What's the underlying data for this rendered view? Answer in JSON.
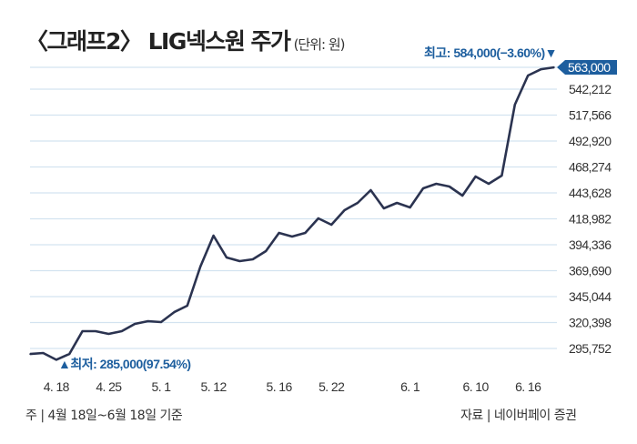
{
  "title": "〈그래프2〉 LIG넥스원 주가",
  "unit": "(단위: 원)",
  "footnote_left": "주 | 4월 18일~6월 18일 기준",
  "footnote_right": "자료 | 네이버페이 증권",
  "colors": {
    "line": "#2b3350",
    "grid": "#d3e3f0",
    "accent": "#1d5e9e",
    "badge": "#1d5e9e",
    "text": "#333333"
  },
  "chart_data": {
    "type": "line",
    "title": "〈그래프2〉 LIG넥스원 주가",
    "ylabel": "원",
    "ylim": [
      285000,
      566000
    ],
    "y_ticks": [
      295752,
      320398,
      345044,
      369690,
      394336,
      418982,
      443628,
      468274,
      492920,
      517566,
      542212,
      563000
    ],
    "y_tick_labels": [
      "295,752",
      "320,398",
      "345,044",
      "369,690",
      "394,336",
      "418,982",
      "443,628",
      "468,274",
      "492,920",
      "517,566",
      "542,212",
      "563,000"
    ],
    "x_labels": [
      {
        "label": "4. 18",
        "index": 2
      },
      {
        "label": "4. 25",
        "index": 6
      },
      {
        "label": "5. 1",
        "index": 10
      },
      {
        "label": "5. 12",
        "index": 14
      },
      {
        "label": "5. 16",
        "index": 19
      },
      {
        "label": "5. 22",
        "index": 23
      },
      {
        "label": "6. 1",
        "index": 29
      },
      {
        "label": "6. 10",
        "index": 34
      },
      {
        "label": "6. 16",
        "index": 38
      }
    ],
    "values": [
      290500,
      291400,
      285000,
      290500,
      312200,
      312200,
      309600,
      312200,
      319100,
      321700,
      320800,
      330300,
      336400,
      373600,
      403000,
      382200,
      378800,
      380500,
      388300,
      405600,
      402100,
      405600,
      419400,
      413400,
      427200,
      434100,
      446200,
      428900,
      434100,
      429800,
      448000,
      452300,
      449700,
      441000,
      459200,
      452300,
      460100,
      527500,
      555200,
      561200,
      563000
    ],
    "current_label": "563,000",
    "annotations": {
      "high": "최고: 584,000(−3.60%)▼",
      "low": "▲최저: 285,000(97.54%)"
    },
    "grid": true
  }
}
